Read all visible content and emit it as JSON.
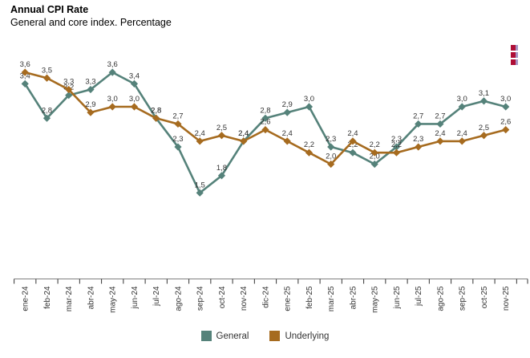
{
  "header": {
    "title": "Annual CPI Rate",
    "subtitle": "General and core index. Percentage"
  },
  "icons": {
    "menu": "red-squares-menu-icon",
    "menu_color": "#AF0E36",
    "menu_edge_color": "#A693C4"
  },
  "chart_data": {
    "type": "line",
    "title": "Annual CPI Rate",
    "subtitle": "General and core index. Percentage",
    "categories": [
      "ene-24",
      "feb-24",
      "mar-24",
      "abr-24",
      "may-24",
      "jun-24",
      "jul-24",
      "ago-24",
      "sep-24",
      "oct-24",
      "nov-24",
      "dic-24",
      "ene-25",
      "feb-25",
      "mar-25",
      "abr-25",
      "may-25",
      "jun-25",
      "jul-25",
      "ago-25",
      "sep-25",
      "oct-25",
      "nov-25"
    ],
    "series": [
      {
        "name": "General",
        "color": "#55827A",
        "values": [
          3.4,
          2.8,
          3.2,
          3.3,
          3.6,
          3.4,
          2.8,
          2.3,
          1.5,
          1.8,
          2.4,
          2.8,
          2.9,
          3.0,
          2.3,
          2.2,
          2.0,
          2.3,
          2.7,
          2.7,
          3.0,
          3.1,
          3.0
        ]
      },
      {
        "name": "Underlying",
        "color": "#A66B1F",
        "values": [
          3.6,
          3.5,
          3.3,
          2.9,
          3.0,
          3.0,
          2.8,
          2.7,
          2.4,
          2.5,
          2.4,
          2.6,
          2.4,
          2.2,
          2.0,
          2.4,
          2.2,
          2.2,
          2.3,
          2.4,
          2.4,
          2.5,
          2.6
        ]
      }
    ],
    "xlabel": "",
    "ylabel": "",
    "ylim": [
      0,
      4
    ],
    "grid": false,
    "y_axis_visible": false,
    "marker": "diamond",
    "data_labels": true,
    "decimal_separator": ",",
    "legend_position": "bottom",
    "axis_color": "#808080",
    "tick_color": "#333333",
    "label_color": "#333333"
  },
  "legend": {
    "items": [
      {
        "label": "General"
      },
      {
        "label": "Underlying"
      }
    ]
  }
}
